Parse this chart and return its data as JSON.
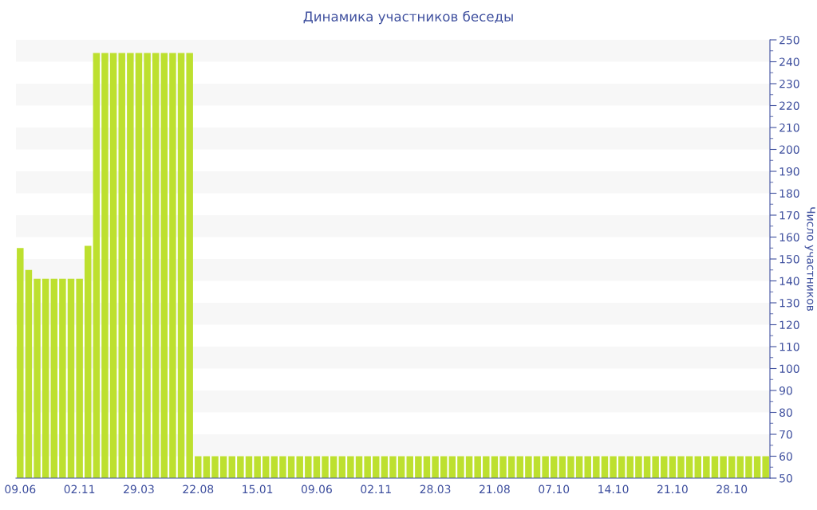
{
  "chart_data": {
    "type": "bar",
    "title": "Динамика участников беседы",
    "ylabel": "Число участников",
    "categories": [
      "09.06",
      null,
      null,
      null,
      null,
      null,
      null,
      "02.11",
      null,
      null,
      null,
      null,
      null,
      null,
      "29.03",
      null,
      null,
      null,
      null,
      null,
      null,
      "22.08",
      null,
      null,
      null,
      null,
      null,
      null,
      "15.01",
      null,
      null,
      null,
      null,
      null,
      null,
      "09.06",
      null,
      null,
      null,
      null,
      null,
      null,
      "02.11",
      null,
      null,
      null,
      null,
      null,
      null,
      "28.03",
      null,
      null,
      null,
      null,
      null,
      null,
      "21.08",
      null,
      null,
      null,
      null,
      null,
      null,
      "07.10",
      null,
      null,
      null,
      null,
      null,
      null,
      "14.10",
      null,
      null,
      null,
      null,
      null,
      null,
      "21.10",
      null,
      null,
      null,
      null,
      null,
      null,
      "28.10",
      null,
      null,
      null,
      null
    ],
    "values": [
      155,
      145,
      141,
      141,
      141,
      141,
      141,
      141,
      156,
      244,
      244,
      244,
      244,
      244,
      244,
      244,
      244,
      244,
      244,
      244,
      244,
      60,
      60,
      60,
      60,
      60,
      60,
      60,
      60,
      60,
      60,
      60,
      60,
      60,
      60,
      60,
      60,
      60,
      60,
      60,
      60,
      60,
      60,
      60,
      60,
      60,
      60,
      60,
      60,
      60,
      60,
      60,
      60,
      60,
      60,
      60,
      60,
      60,
      60,
      60,
      60,
      60,
      60,
      60,
      60,
      60,
      60,
      60,
      60,
      60,
      60,
      60,
      60,
      60,
      60,
      60,
      60,
      60,
      60,
      60,
      60,
      60,
      60,
      60,
      60,
      60,
      60,
      60,
      60
    ],
    "color": "#bde02f",
    "ylim": [
      50,
      250
    ],
    "yticks": [
      50,
      60,
      70,
      80,
      90,
      100,
      110,
      120,
      130,
      140,
      150,
      160,
      170,
      180,
      190,
      200,
      210,
      220,
      230,
      240,
      250
    ],
    "bands": [
      {
        "axis": "y",
        "from": 60,
        "to": 70,
        "color": "#f7f7f7"
      },
      {
        "axis": "y",
        "from": 80,
        "to": 90,
        "color": "#f7f7f7"
      },
      {
        "axis": "y",
        "from": 100,
        "to": 110,
        "color": "#f7f7f7"
      },
      {
        "axis": "y",
        "from": 120,
        "to": 130,
        "color": "#f7f7f7"
      },
      {
        "axis": "y",
        "from": 140,
        "to": 150,
        "color": "#f7f7f7"
      },
      {
        "axis": "y",
        "from": 160,
        "to": 170,
        "color": "#f7f7f7"
      },
      {
        "axis": "y",
        "from": 180,
        "to": 190,
        "color": "#f7f7f7"
      },
      {
        "axis": "y",
        "from": 200,
        "to": 210,
        "color": "#f7f7f7"
      },
      {
        "axis": "y",
        "from": 220,
        "to": 230,
        "color": "#f7f7f7"
      },
      {
        "axis": "y",
        "from": 240,
        "to": 250,
        "color": "#f7f7f7"
      }
    ],
    "legend": false
  }
}
